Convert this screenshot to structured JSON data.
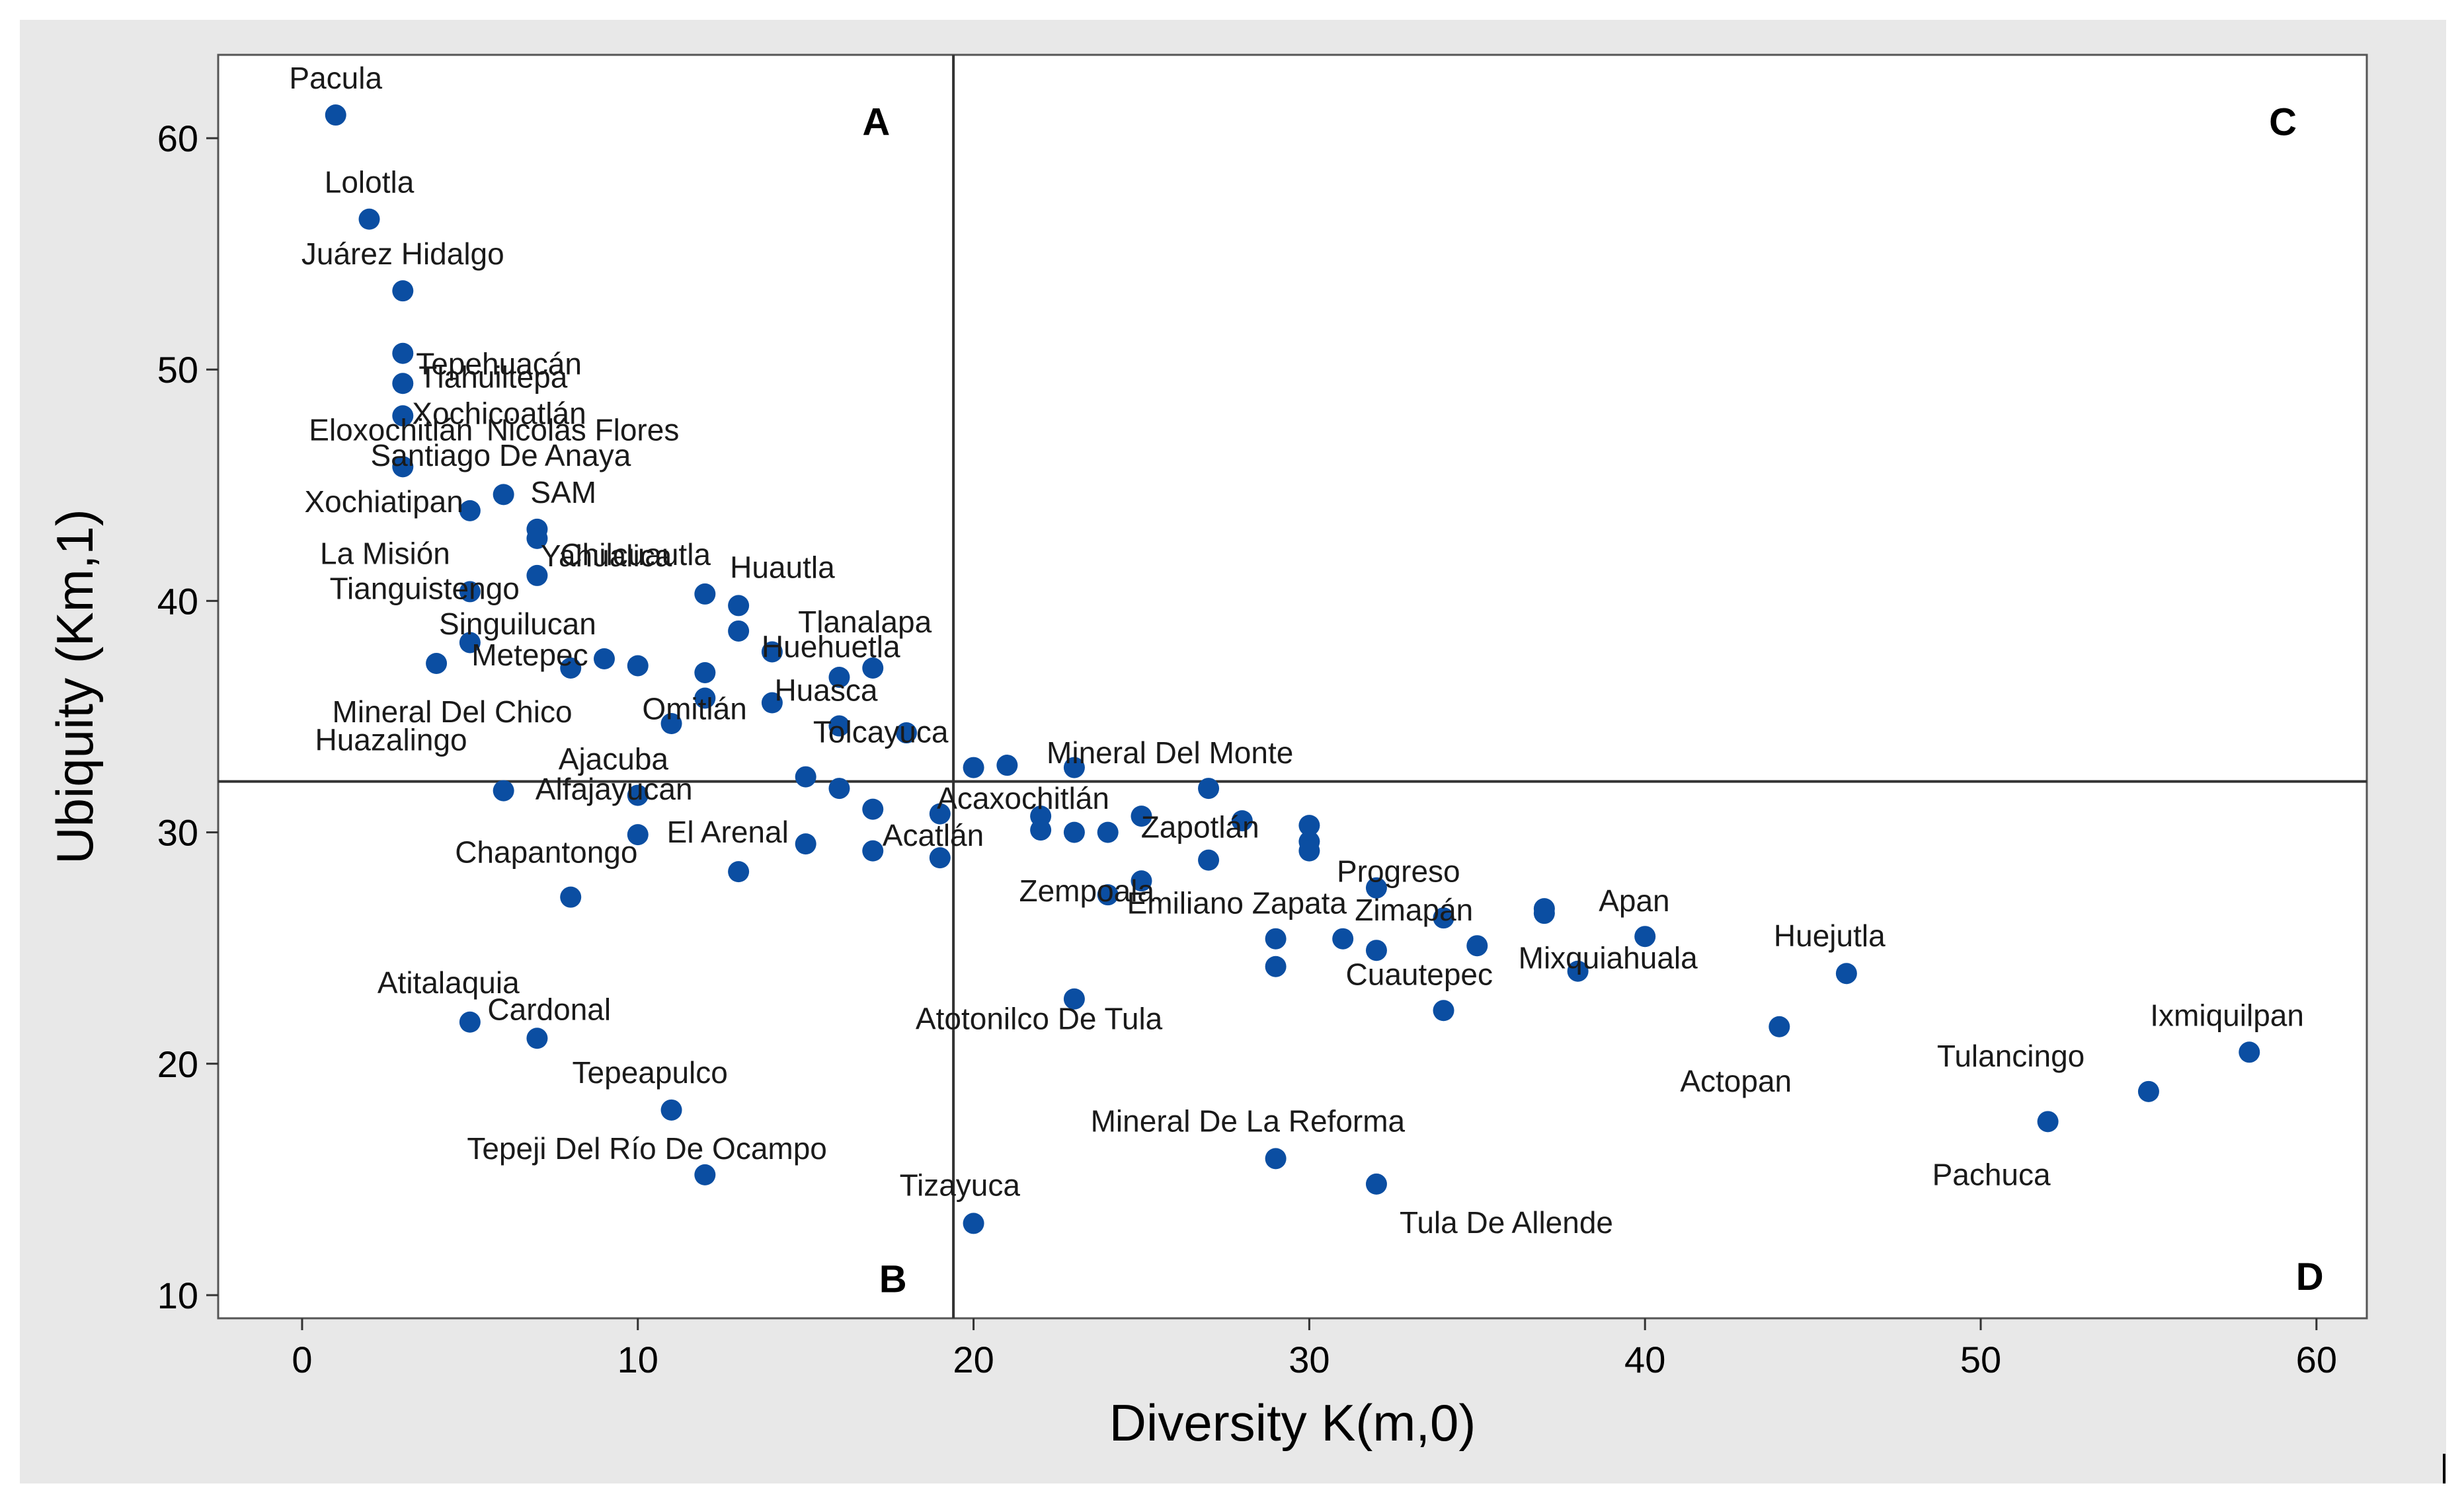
{
  "chart_data": {
    "type": "scatter",
    "xlabel": "Diversity K(m,0)",
    "ylabel": "Ubiquity (Km,1)",
    "xlim": [
      -2.5,
      61.5
    ],
    "ylim": [
      9,
      63.6
    ],
    "xticks": [
      0,
      10,
      20,
      30,
      40,
      50,
      60
    ],
    "yticks": [
      10,
      20,
      30,
      40,
      50,
      60
    ],
    "reference_lines": {
      "x": 19.4,
      "y": 32.2
    },
    "quadrants": [
      {
        "label": "A",
        "x": 17.1,
        "y": 60.7
      },
      {
        "label": "B",
        "x": 17.6,
        "y": 10.7
      },
      {
        "label": "C",
        "x": 59.0,
        "y": 60.7
      },
      {
        "label": "D",
        "x": 59.8,
        "y": 10.8
      }
    ],
    "colors": {
      "marker": "#0b4ea2",
      "reference_line": "#333333",
      "outer_background": "#e8e8e8",
      "plot_background": "#ffffff"
    },
    "points": [
      {
        "x": 1,
        "y": 61,
        "label": "Pacula"
      },
      {
        "x": 2,
        "y": 56.5,
        "label": "Lolotla"
      },
      {
        "x": 3,
        "y": 53.4,
        "label": "Juárez Hidalgo"
      },
      {
        "x": 3,
        "y": 50.7,
        "label": "Tepehuacán"
      },
      {
        "x": 3,
        "y": 49.4,
        "label": "Tlahuiltepa"
      },
      {
        "x": 3,
        "y": 48,
        "label": "Xochicoatlán"
      },
      {
        "x": 3,
        "y": 45.8,
        "label": "Eloxochitlán"
      },
      {
        "x": 6,
        "y": 44.6,
        "label": "Nicolás Flores"
      },
      {
        "x": 5,
        "y": 43.9,
        "label": "Xochiatipan"
      },
      {
        "x": 7,
        "y": 43.1,
        "label": "Santiago De Anaya"
      },
      {
        "x": 7,
        "y": 42.7,
        "label": "SAM"
      },
      {
        "x": 7,
        "y": 41.1,
        "label": "Chilcuautla"
      },
      {
        "x": 5,
        "y": 40.4,
        "label": "La Misión"
      },
      {
        "x": 12,
        "y": 40.3,
        "label": "Yahualica"
      },
      {
        "x": 13,
        "y": 39.8,
        "label": "Huautla"
      },
      {
        "x": 13,
        "y": 38.7,
        "label": "Tlanalapa"
      },
      {
        "x": 5,
        "y": 38.2,
        "label": "Tianguistengo"
      },
      {
        "x": 14,
        "y": 37.8,
        "label": "Huehuetla"
      },
      {
        "x": 9,
        "y": 37.5,
        "label": "Singuilucan"
      },
      {
        "x": 4,
        "y": 37.3,
        "label": ""
      },
      {
        "x": 10,
        "y": 37.2,
        "label": ""
      },
      {
        "x": 8,
        "y": 37.1,
        "label": "Metepec"
      },
      {
        "x": 17,
        "y": 37.1,
        "label": ""
      },
      {
        "x": 12,
        "y": 36.9,
        "label": ""
      },
      {
        "x": 16,
        "y": 36.7,
        "label": ""
      },
      {
        "x": 12,
        "y": 35.8,
        "label": "Omitlán"
      },
      {
        "x": 14,
        "y": 35.6,
        "label": ""
      },
      {
        "x": 11,
        "y": 34.7,
        "label": "Mineral Del Chico"
      },
      {
        "x": 16,
        "y": 34.6,
        "label": "Huasca"
      },
      {
        "x": 18,
        "y": 34.3,
        "label": ""
      },
      {
        "x": 23,
        "y": 32.8,
        "label": "Tolcayuca"
      },
      {
        "x": 20,
        "y": 32.8,
        "label": ""
      },
      {
        "x": 21,
        "y": 32.9,
        "label": ""
      },
      {
        "x": 15,
        "y": 32.4,
        "label": ""
      },
      {
        "x": 16,
        "y": 31.9,
        "label": ""
      },
      {
        "x": 27,
        "y": 31.9,
        "label": "Mineral Del Monte"
      },
      {
        "x": 6,
        "y": 31.8,
        "label": "Huazalingo"
      },
      {
        "x": 10,
        "y": 31.6,
        "label": "Ajacuba"
      },
      {
        "x": 17,
        "y": 31.0,
        "label": ""
      },
      {
        "x": 19,
        "y": 30.8,
        "label": ""
      },
      {
        "x": 22,
        "y": 30.7,
        "label": "Acaxochitlán"
      },
      {
        "x": 25,
        "y": 30.7,
        "label": ""
      },
      {
        "x": 28,
        "y": 30.5,
        "label": ""
      },
      {
        "x": 30,
        "y": 30.3,
        "label": ""
      },
      {
        "x": 22,
        "y": 30.1,
        "label": ""
      },
      {
        "x": 23,
        "y": 30.0,
        "label": ""
      },
      {
        "x": 24,
        "y": 30.0,
        "label": "Zapotlán"
      },
      {
        "x": 10,
        "y": 29.9,
        "label": "Alfajayucan"
      },
      {
        "x": 30,
        "y": 29.6,
        "label": ""
      },
      {
        "x": 15,
        "y": 29.5,
        "label": "El Arenal"
      },
      {
        "x": 30,
        "y": 29.2,
        "label": ""
      },
      {
        "x": 17,
        "y": 29.2,
        "label": ""
      },
      {
        "x": 19,
        "y": 28.9,
        "label": "Acatlán"
      },
      {
        "x": 27,
        "y": 28.8,
        "label": ""
      },
      {
        "x": 13,
        "y": 28.3,
        "label": ""
      },
      {
        "x": 25,
        "y": 27.9,
        "label": "Zempoala"
      },
      {
        "x": 32,
        "y": 27.6,
        "label": "Progreso"
      },
      {
        "x": 24,
        "y": 27.3,
        "label": ""
      },
      {
        "x": 8,
        "y": 27.2,
        "label": "Chapantongo"
      },
      {
        "x": 37,
        "y": 26.7,
        "label": ""
      },
      {
        "x": 37,
        "y": 26.5,
        "label": ""
      },
      {
        "x": 34,
        "y": 26.3,
        "label": ""
      },
      {
        "x": 40,
        "y": 25.5,
        "label": "Apan"
      },
      {
        "x": 29,
        "y": 25.4,
        "label": "Emiliano Zapata"
      },
      {
        "x": 31,
        "y": 25.4,
        "label": ""
      },
      {
        "x": 35,
        "y": 25.1,
        "label": "Zimapán"
      },
      {
        "x": 32,
        "y": 24.9,
        "label": ""
      },
      {
        "x": 29,
        "y": 24.2,
        "label": ""
      },
      {
        "x": 38,
        "y": 24.0,
        "label": "Mixquiahuala"
      },
      {
        "x": 46,
        "y": 23.9,
        "label": "Huejutla"
      },
      {
        "x": 23,
        "y": 22.8,
        "label": "Atotonilco De Tula"
      },
      {
        "x": 34,
        "y": 22.3,
        "label": "Cuautepec"
      },
      {
        "x": 5,
        "y": 21.8,
        "label": "Atitalaquia"
      },
      {
        "x": 44,
        "y": 21.6,
        "label": "Actopan"
      },
      {
        "x": 7,
        "y": 21.1,
        "label": "Cardonal"
      },
      {
        "x": 58,
        "y": 20.5,
        "label": "Ixmiquilpan"
      },
      {
        "x": 55,
        "y": 18.8,
        "label": "Tulancingo"
      },
      {
        "x": 11,
        "y": 18.0,
        "label": "Tepeapulco"
      },
      {
        "x": 52,
        "y": 17.5,
        "label": "Pachuca"
      },
      {
        "x": 29,
        "y": 15.9,
        "label": "Mineral De La Reforma"
      },
      {
        "x": 12,
        "y": 15.2,
        "label": "Tepeji Del Río De Ocampo"
      },
      {
        "x": 32,
        "y": 14.8,
        "label": "Tula De Allende"
      },
      {
        "x": 20,
        "y": 13.1,
        "label": "Tizayuca"
      }
    ]
  }
}
